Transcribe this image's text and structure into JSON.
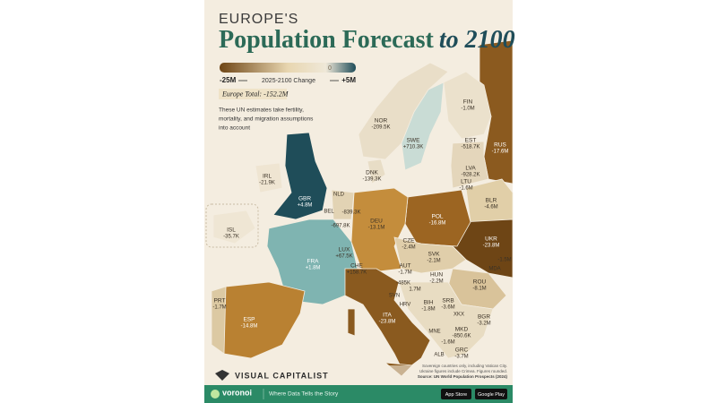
{
  "header": {
    "kicker": "EUROPE'S",
    "title": "Population Forecast",
    "title_em": "to 2100"
  },
  "legend": {
    "min": "-25M",
    "mid": "0",
    "caption": "2025-2100 Change",
    "max": "+5M"
  },
  "total": "Europe Total: -152.2M",
  "note": [
    "These UN estimates take fertility,",
    "mortality, and migration assumptions",
    "into account"
  ],
  "labels": [
    {
      "code": "NOR",
      "value": "-209.5K"
    },
    {
      "code": "FIN",
      "value": "-1.0M"
    },
    {
      "code": "SWE",
      "value": "+710.3K"
    },
    {
      "code": "EST",
      "value": "-518.7K"
    },
    {
      "code": "RUS",
      "value": "-17.6M"
    },
    {
      "code": "LVA",
      "value": "-928.2K"
    },
    {
      "code": "DNK",
      "value": "-139.3K"
    },
    {
      "code": "IRL",
      "value": "-21.9K"
    },
    {
      "code": "LTU",
      "value": "-1.6M"
    },
    {
      "code": "GBR",
      "value": "+4.8M"
    },
    {
      "code": "BLR",
      "value": "-4.6M"
    },
    {
      "code": "POL",
      "value": "-16.8M"
    },
    {
      "code": "DEU",
      "value": "-13.1M"
    },
    {
      "code": "UKR",
      "value": "-23.8M"
    },
    {
      "code": "ISL",
      "value": "-35.7K"
    },
    {
      "code": "CZE",
      "value": "-2.4M"
    },
    {
      "code": "FRA",
      "value": "+1.8M"
    },
    {
      "code": "LUX",
      "value": "+67.5K"
    },
    {
      "code": "SVK",
      "value": "-2.1M"
    },
    {
      "code": "AUT",
      "value": "-1.7M"
    },
    {
      "code": "CHE",
      "value": "+158.7K"
    },
    {
      "code": "HUN",
      "value": "-2.2M"
    },
    {
      "code": "ROU",
      "value": "-8.1M"
    },
    {
      "code": "BIH",
      "value": "-1.8M"
    },
    {
      "code": "SRB",
      "value": "-3.6M"
    },
    {
      "code": "PRT",
      "value": "-1.7M"
    },
    {
      "code": "ITA",
      "value": "-23.8M"
    },
    {
      "code": "BGR",
      "value": "-3.2M"
    },
    {
      "code": "ESP",
      "value": "-14.8M"
    },
    {
      "code": "MKD",
      "value": "-850.6K"
    },
    {
      "code": "GRC",
      "value": "-3.7M"
    }
  ],
  "loose_labels": [
    "NLD",
    "BEL",
    "-839.3K",
    "-697.8K",
    "MDA",
    "-1.5M",
    "-485K",
    "SVN",
    "1.7M",
    "HRV",
    "XKX",
    "MNE",
    "ALB",
    "-1.6M"
  ],
  "footer": {
    "brand": "VISUAL CAPITALIST",
    "notes": [
      "Sovereign countries only, including Vatican City.",
      "Ukraine figures include Crimea. Figures rounded."
    ],
    "source": "Source: UN World Population Prospects (2024)",
    "voronoi": "voronoi",
    "tagline": "Where Data Tells the Story",
    "app_store": "App Store",
    "google_play": "Google Play"
  }
}
